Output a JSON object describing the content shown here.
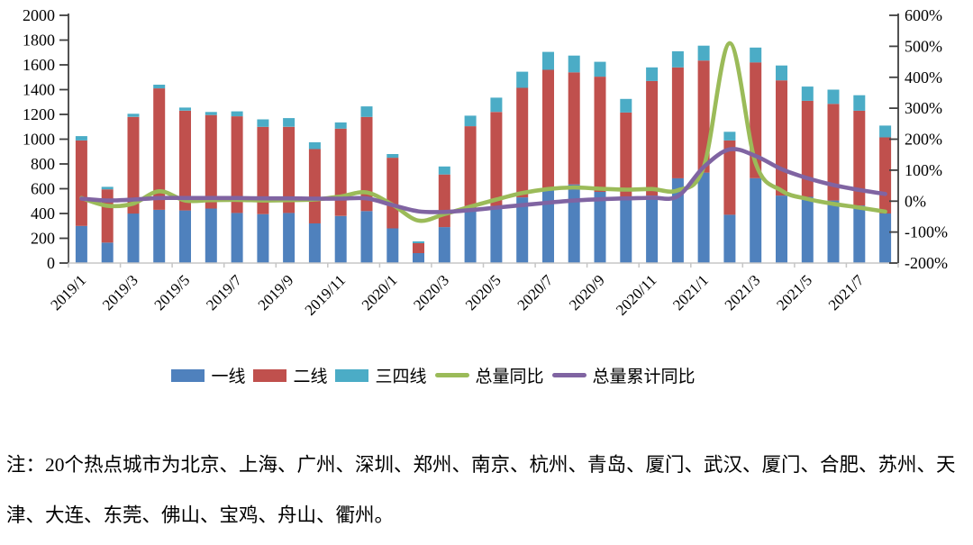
{
  "chart_data": {
    "type": "combo-stacked-bar-line",
    "categories": [
      "2019/1",
      "2019/2",
      "2019/3",
      "2019/4",
      "2019/5",
      "2019/6",
      "2019/7",
      "2019/8",
      "2019/9",
      "2019/10",
      "2019/11",
      "2019/12",
      "2020/1",
      "2020/2",
      "2020/3",
      "2020/4",
      "2020/5",
      "2020/6",
      "2020/7",
      "2020/8",
      "2020/9",
      "2020/10",
      "2020/11",
      "2020/12",
      "2021/1",
      "2021/2",
      "2021/3",
      "2021/4",
      "2021/5",
      "2021/6",
      "2021/7",
      "2021/8"
    ],
    "x_tick_labels": [
      "2019/1",
      "2019/3",
      "2019/5",
      "2019/7",
      "2019/9",
      "2019/11",
      "2020/1",
      "2020/3",
      "2020/5",
      "2020/7",
      "2020/9",
      "2020/11",
      "2021/1",
      "2021/3",
      "2021/5",
      "2021/7"
    ],
    "series": [
      {
        "name": "一线",
        "type": "bar",
        "stack": "total",
        "color": "#4F81BD",
        "values": [
          300,
          165,
          400,
          430,
          425,
          440,
          405,
          395,
          405,
          320,
          380,
          420,
          280,
          80,
          290,
          420,
          460,
          530,
          590,
          635,
          575,
          525,
          545,
          685,
          730,
          390,
          685,
          545,
          535,
          505,
          465,
          400
        ]
      },
      {
        "name": "二线",
        "type": "bar",
        "stack": "total",
        "color": "#C0504D",
        "values": [
          690,
          430,
          780,
          980,
          805,
          755,
          780,
          705,
          695,
          600,
          705,
          760,
          570,
          80,
          425,
          685,
          760,
          885,
          970,
          905,
          930,
          690,
          925,
          895,
          905,
          600,
          935,
          930,
          775,
          780,
          765,
          615
        ]
      },
      {
        "name": "三四线",
        "type": "bar",
        "stack": "total",
        "color": "#4BACC6",
        "values": [
          35,
          20,
          25,
          30,
          25,
          25,
          40,
          60,
          70,
          55,
          50,
          85,
          30,
          15,
          65,
          85,
          115,
          130,
          145,
          135,
          120,
          110,
          110,
          130,
          120,
          70,
          120,
          120,
          115,
          115,
          125,
          95
        ]
      },
      {
        "name": "总量同比",
        "type": "line",
        "axis": "right",
        "color": "#9BBB59",
        "values_pct": [
          10,
          -15,
          -8,
          32,
          2,
          3,
          4,
          2,
          3,
          5,
          15,
          28,
          -12,
          -63,
          -42,
          -18,
          5,
          26,
          39,
          44,
          40,
          37,
          39,
          35,
          110,
          510,
          123,
          34,
          7,
          -9,
          -21,
          -34
        ]
      },
      {
        "name": "总量累计同比",
        "type": "line",
        "axis": "right",
        "color": "#8064A2",
        "values_pct": [
          8,
          2,
          5,
          10,
          10,
          10,
          10,
          9,
          9,
          8,
          8,
          9,
          -13,
          -33,
          -35,
          -29,
          -21,
          -13,
          -5,
          2,
          6,
          9,
          11,
          16,
          110,
          167,
          146,
          103,
          74,
          52,
          36,
          23
        ]
      }
    ],
    "left_axis": {
      "min": 0,
      "max": 2000,
      "step": 200,
      "ticks": [
        "0",
        "200",
        "400",
        "600",
        "800",
        "1000",
        "1200",
        "1400",
        "1600",
        "1800",
        "2000"
      ]
    },
    "right_axis": {
      "min": -200,
      "max": 600,
      "step": 100,
      "ticks": [
        "-200%",
        "-100%",
        "0%",
        "100%",
        "200%",
        "300%",
        "400%",
        "500%",
        "600%"
      ]
    },
    "gridlines": false,
    "legend_position": "bottom",
    "title": ""
  },
  "legend": {
    "items": [
      {
        "label": "一线"
      },
      {
        "label": "二线"
      },
      {
        "label": "三四线"
      },
      {
        "label": "总量同比"
      },
      {
        "label": "总量累计同比"
      }
    ]
  },
  "note": {
    "text": "注：20个热点城市为北京、上海、广州、深圳、郑州、南京、杭州、青岛、厦门、武汉、厦门、合肥、苏州、天津、大连、东莞、佛山、宝鸡、舟山、衢州。"
  },
  "colors": {
    "tier1_bar": "#4F81BD",
    "tier2_bar": "#C0504D",
    "tier34_bar": "#4BACC6",
    "yoy_line": "#9BBB59",
    "cum_yoy_line": "#8064A2",
    "axis_line": "#3F3F3F",
    "bottom_axis_line": "#C6C6C6",
    "text": "#000000"
  }
}
